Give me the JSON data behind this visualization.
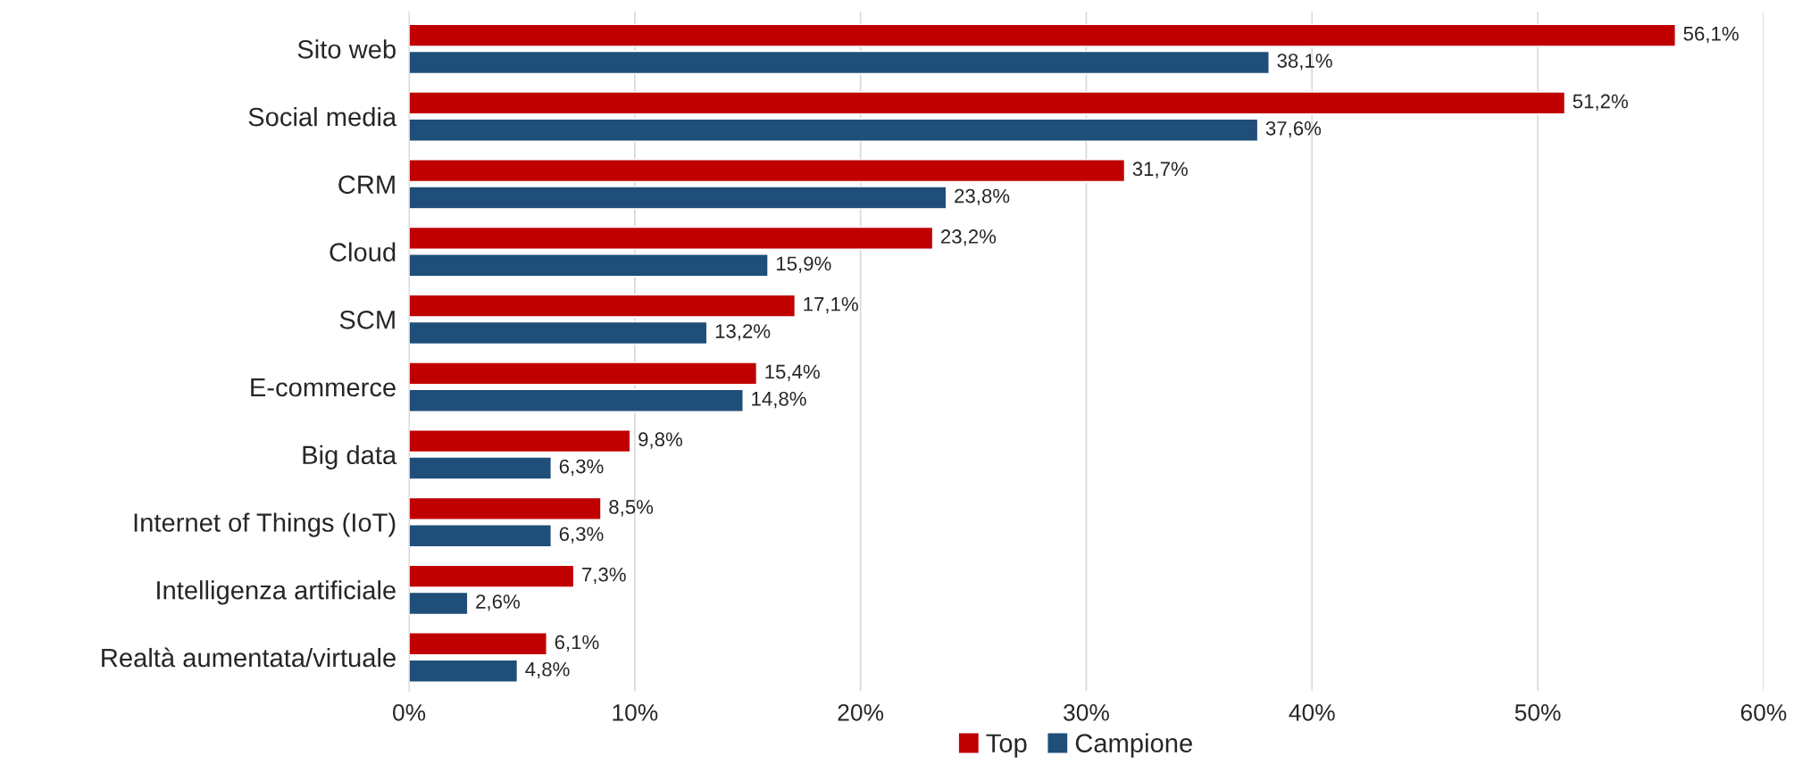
{
  "chart_data": {
    "type": "bar",
    "orientation": "horizontal",
    "categories": [
      "Sito web",
      "Social media",
      "CRM",
      "Cloud",
      "SCM",
      "E-commerce",
      "Big data",
      "Internet of Things (IoT)",
      "Intelligenza artificiale",
      "Realtà aumentata/virtuale"
    ],
    "series": [
      {
        "name": "Top",
        "color": "#c00000",
        "values": [
          56.1,
          51.2,
          31.7,
          23.2,
          17.1,
          15.4,
          9.8,
          8.5,
          7.3,
          6.1
        ],
        "value_labels": [
          "56,1%",
          "51,2%",
          "31,7%",
          "23,2%",
          "17,1%",
          "15,4%",
          "9,8%",
          "8,5%",
          "7,3%",
          "6,1%"
        ]
      },
      {
        "name": "Campione",
        "color": "#1f4e79",
        "values": [
          38.1,
          37.6,
          23.8,
          15.9,
          13.2,
          14.8,
          6.3,
          6.3,
          2.6,
          4.8
        ],
        "value_labels": [
          "38,1%",
          "37,6%",
          "23,8%",
          "15,9%",
          "13,2%",
          "14,8%",
          "6,3%",
          "6,3%",
          "2,6%",
          "4,8%"
        ]
      }
    ],
    "xlim": [
      0,
      60
    ],
    "xticks": [
      {
        "value": 0,
        "label": "0%"
      },
      {
        "value": 10,
        "label": "10%"
      },
      {
        "value": 20,
        "label": "20%"
      },
      {
        "value": 30,
        "label": "30%"
      },
      {
        "value": 40,
        "label": "40%"
      },
      {
        "value": 50,
        "label": "50%"
      },
      {
        "value": 60,
        "label": "60%"
      }
    ],
    "grid": "x",
    "legend": "bottom"
  }
}
